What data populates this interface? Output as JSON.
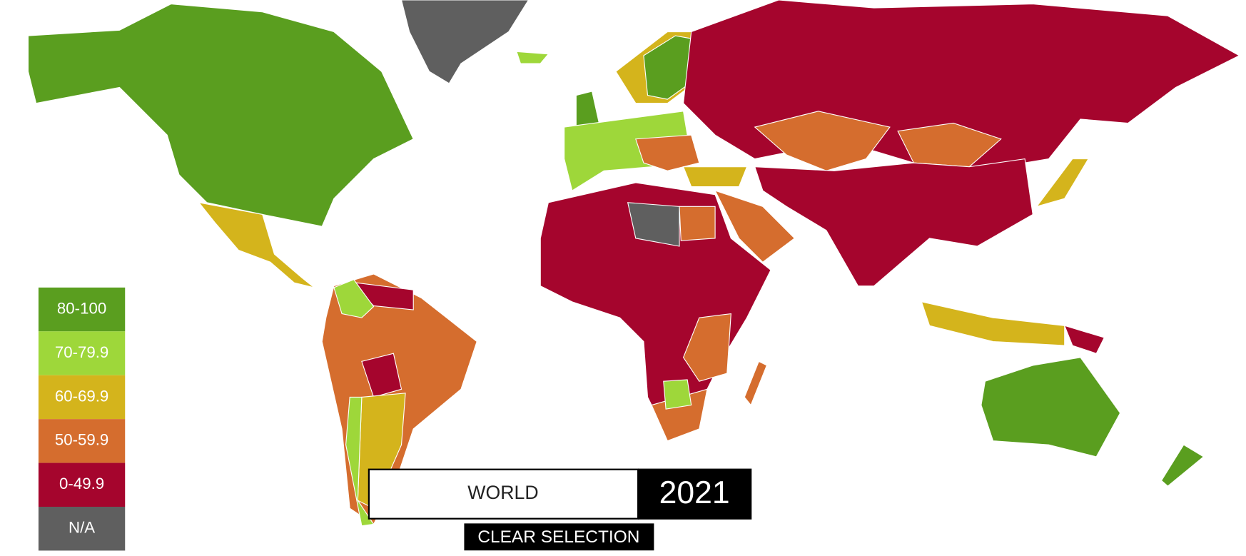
{
  "legend": {
    "items": [
      {
        "label": "80-100",
        "color": "#5a9e1f"
      },
      {
        "label": "70-79.9",
        "color": "#9ed73a"
      },
      {
        "label": "60-69.9",
        "color": "#d4b41c"
      },
      {
        "label": "50-59.9",
        "color": "#d56d2e"
      },
      {
        "label": "0-49.9",
        "color": "#a5052d"
      },
      {
        "label": "N/A",
        "color": "#5f5f5f"
      }
    ]
  },
  "region": "WORLD",
  "year": "2021",
  "button": "CLEAR SELECTION"
}
